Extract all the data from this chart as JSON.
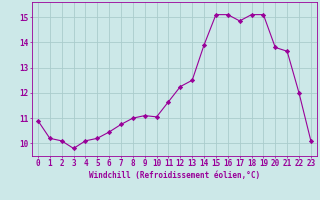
{
  "x": [
    0,
    1,
    2,
    3,
    4,
    5,
    6,
    7,
    8,
    9,
    10,
    11,
    12,
    13,
    14,
    15,
    16,
    17,
    18,
    19,
    20,
    21,
    22,
    23
  ],
  "y": [
    10.9,
    10.2,
    10.1,
    9.8,
    10.1,
    10.2,
    10.45,
    10.75,
    11.0,
    11.1,
    11.05,
    11.65,
    12.25,
    12.5,
    13.9,
    15.1,
    15.1,
    14.85,
    15.1,
    15.1,
    13.8,
    13.65,
    12.0,
    10.1
  ],
  "line_color": "#990099",
  "marker": "D",
  "marker_size": 2.2,
  "bg_color": "#cce8e8",
  "grid_color": "#aacccc",
  "xlabel": "Windchill (Refroidissement éolien,°C)",
  "ylim": [
    9.5,
    15.6
  ],
  "yticks": [
    10,
    11,
    12,
    13,
    14,
    15
  ],
  "xticks": [
    0,
    1,
    2,
    3,
    4,
    5,
    6,
    7,
    8,
    9,
    10,
    11,
    12,
    13,
    14,
    15,
    16,
    17,
    18,
    19,
    20,
    21,
    22,
    23
  ],
  "xlabel_fontsize": 5.5,
  "tick_fontsize": 5.5
}
